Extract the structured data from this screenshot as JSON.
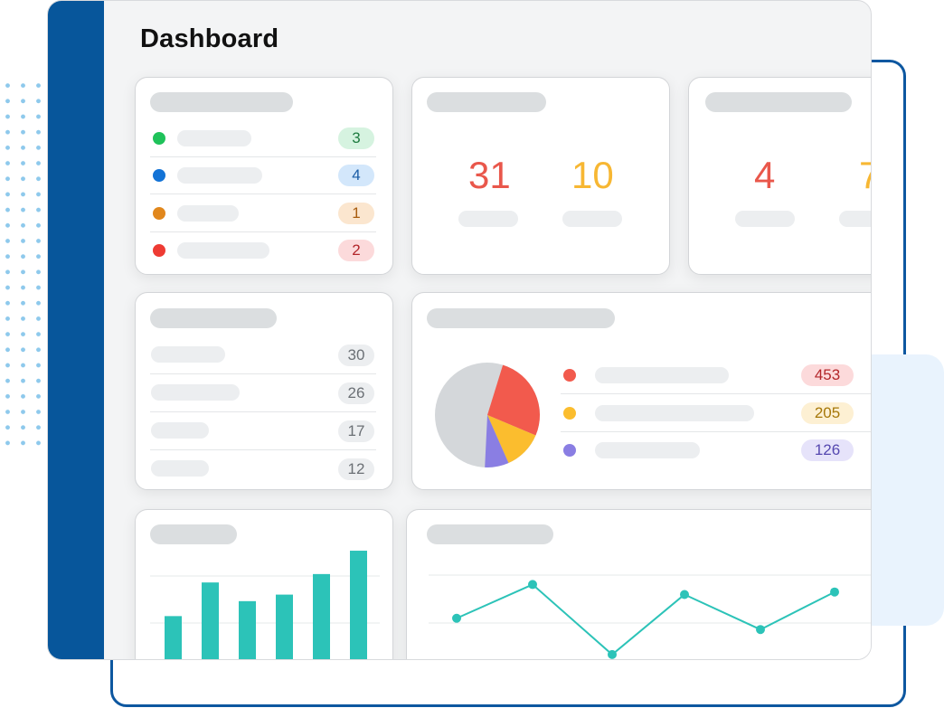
{
  "header": {
    "title": "Dashboard"
  },
  "status_list": [
    {
      "color": "#1fc25a",
      "value": "3",
      "badge_bg": "#d6f3e0",
      "badge_fg": "#1e7c40"
    },
    {
      "color": "#1373d6",
      "value": "4",
      "badge_bg": "#d3e7fb",
      "badge_fg": "#1a5da6"
    },
    {
      "color": "#e1871c",
      "value": "1",
      "badge_bg": "#fbe6cf",
      "badge_fg": "#a85d10"
    },
    {
      "color": "#ee3b33",
      "value": "2",
      "badge_bg": "#fcdadb",
      "badge_fg": "#b3262a"
    }
  ],
  "stats_card_1": {
    "value_a": "31",
    "value_b": "10"
  },
  "stats_card_2": {
    "value_a": "4",
    "value_b": "7"
  },
  "counts_list": [
    "30",
    "26",
    "17",
    "12"
  ],
  "pie_card": {
    "legend": [
      {
        "color": "#f25a4d",
        "value": "453",
        "badge_bg": "#fcdadb",
        "badge_fg": "#b3262a"
      },
      {
        "color": "#fbbd2e",
        "value": "205",
        "badge_bg": "#fdf0d3",
        "badge_fg": "#a67708"
      },
      {
        "color": "#8a7ee3",
        "value": "126",
        "badge_bg": "#e6e3fa",
        "badge_fg": "#5548b0"
      }
    ]
  },
  "colors": {
    "sidebar": "#07569b",
    "red": "#e9574b",
    "orange": "#f7b733",
    "teal": "#2cc3b8",
    "pie_gray": "#d4d7da"
  },
  "chart_data": [
    {
      "type": "pie",
      "values": [
        453,
        205,
        126
      ],
      "colors": [
        "#f25a4d",
        "#fbbd2e",
        "#8a7ee3"
      ]
    },
    {
      "type": "bar",
      "values": [
        49,
        85,
        65,
        72,
        94,
        119
      ],
      "ylim": [
        0,
        120
      ]
    },
    {
      "type": "line",
      "values": [
        58,
        85,
        29,
        77,
        49,
        79
      ],
      "ylim": [
        0,
        120
      ]
    }
  ]
}
